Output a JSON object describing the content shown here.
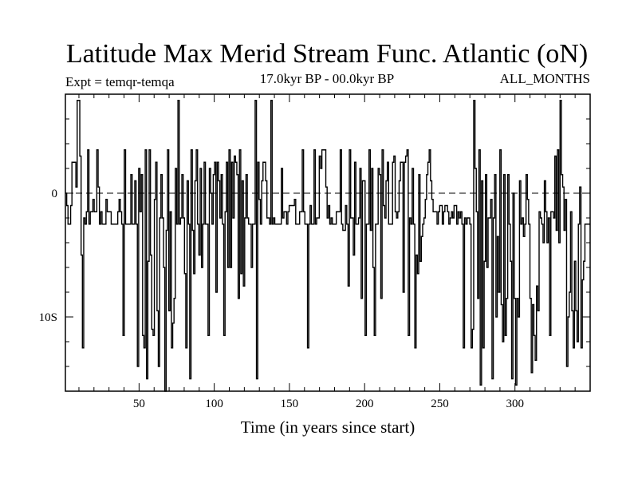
{
  "chart_data": {
    "type": "line",
    "title": "Latitude Max Merid Stream Func. Atlantic (oN)",
    "experiment_label": "Expt = temqr-temqa",
    "period_label": "17.0kyr BP - 00.0kyr BP",
    "months_label": "ALL_MONTHS",
    "xlabel": "Time (in years since start)",
    "ylabel": "",
    "xlim": [
      1,
      350
    ],
    "ylim": [
      -16,
      8
    ],
    "x_ticks": [
      {
        "value": 50,
        "label": "50"
      },
      {
        "value": 100,
        "label": "100"
      },
      {
        "value": 150,
        "label": "150"
      },
      {
        "value": 200,
        "label": "200"
      },
      {
        "value": 250,
        "label": "250"
      },
      {
        "value": 300,
        "label": "300"
      }
    ],
    "y_ticks": [
      {
        "value": 0,
        "label": "0"
      },
      {
        "value": -10,
        "label": "10S"
      }
    ],
    "zero_line": 0,
    "series": [
      {
        "name": "latitude",
        "values": [
          0,
          -1,
          -2.5,
          -2.5,
          -1,
          2.5,
          2.5,
          2.5,
          0.5,
          7.5,
          7.5,
          3,
          -5,
          -12.5,
          -2,
          -2.5,
          -1.5,
          3.5,
          -2.5,
          -1.5,
          -1.5,
          -0.5,
          -1.5,
          -1.5,
          3.5,
          0.5,
          -2.5,
          -1.5,
          -2.5,
          -2.5,
          -2.5,
          -0.5,
          -1.5,
          -1.5,
          -1.5,
          -2.5,
          -2.5,
          -2.5,
          -2.5,
          -2.5,
          -1.5,
          -0.5,
          -1.5,
          -2.5,
          -11.5,
          3.5,
          -2.5,
          -2.5,
          -2.5,
          -2.5,
          1.5,
          -2.5,
          -2.5,
          1,
          -2.5,
          -14,
          2,
          -1.5,
          1.5,
          -11.5,
          -12.5,
          3.5,
          -15,
          -5.5,
          3.5,
          -5,
          -11,
          -11.5,
          -0.5,
          2.5,
          -9.5,
          -14,
          -2,
          1.5,
          -2,
          -6,
          -16,
          -3,
          3.5,
          -9.5,
          -1.5,
          -12.5,
          -10.5,
          -8.5,
          2,
          -2.5,
          7.5,
          -2.5,
          -2,
          1.5,
          -2,
          -6.5,
          -12.5,
          1,
          -2.5,
          -15,
          3.5,
          -3,
          -6.5,
          1,
          3.5,
          -2.5,
          -5,
          2,
          -6,
          -2.5,
          2.5,
          -2.5,
          -2.5,
          -11.5,
          2,
          0,
          -2.5,
          1.5,
          2.5,
          -8,
          2.5,
          1,
          -2,
          1.5,
          -2.5,
          -11.5,
          -1.5,
          2.5,
          -6,
          3.5,
          -6,
          2.5,
          -2,
          3,
          2.5,
          1.5,
          -8.5,
          3.5,
          -6.5,
          1,
          -7.5,
          -2,
          1.5,
          -2,
          -2.5,
          -2.5,
          -6,
          -2.5,
          -2.5,
          7.5,
          -15,
          2.5,
          -0.5,
          -2.5,
          1,
          2.5,
          2.5,
          1,
          -2,
          -2,
          -2.5,
          7.5,
          -2.5,
          -2,
          -2.5,
          -2.5,
          -2.5,
          -2.5,
          -2.5,
          2,
          -2,
          -1.5,
          -1.5,
          -2.5,
          -1.5,
          -1,
          -1,
          -1,
          -1,
          -0.5,
          -2.5,
          -2.5,
          -2.5,
          -1.5,
          -1.5,
          3.5,
          -1.5,
          -2.5,
          -2.5,
          -12.5,
          -2.5,
          -1,
          -2.5,
          -2.5,
          3.5,
          -2.5,
          -2,
          -2,
          3,
          2,
          3.5,
          3.5,
          3.5,
          0.5,
          -2,
          -1,
          -2.5,
          -2,
          -2.5,
          -2.5,
          -2.5,
          -1.5,
          -1.5,
          -1.5,
          3.5,
          -2.5,
          -3,
          -3,
          -1,
          -2.5,
          -7.5,
          3.5,
          -2,
          -2,
          -5,
          2.5,
          -2.5,
          -2.5,
          -2,
          2,
          -8.5,
          1,
          1,
          -11.5,
          -2.5,
          -2.5,
          3.5,
          -3,
          2,
          -6,
          -11.5,
          -2.5,
          -2.5,
          2,
          1.5,
          -8.5,
          3.5,
          -1,
          -2,
          1,
          2.5,
          -2.5,
          -2.5,
          -2.5,
          2.5,
          3,
          -1.5,
          -2,
          -1.5,
          1,
          2.5,
          2.5,
          -8,
          2.5,
          3,
          3.5,
          -11.5,
          -2,
          -2.5,
          2,
          -2.5,
          -12.5,
          -5,
          -6.5,
          1.5,
          -5.5,
          -3.5,
          -2.5,
          -2,
          -0.5,
          1.5,
          2.5,
          3.5,
          1,
          -0.5,
          -1.5,
          -1.5,
          -1.5,
          -2.5,
          -1.5,
          -1,
          -1,
          -2.5,
          -1.5,
          -1,
          -1,
          -1.5,
          -2.5,
          -2,
          -1.5,
          -2,
          -1,
          -1,
          -2.5,
          -1.5,
          -2,
          -1.5,
          -2.5,
          -12.5,
          -2,
          -2.5,
          -2,
          -2,
          -2.5,
          -12.5,
          -11,
          7.5,
          2,
          -1.5,
          -8.5,
          3.5,
          -15.5,
          1,
          -12.5,
          -5.5,
          1.5,
          -6,
          -2,
          -2,
          -0.5,
          -15,
          -2,
          1.5,
          -10,
          -3.5,
          -8,
          3.5,
          -9,
          -12,
          1.5,
          -11.5,
          -8.5,
          1.5,
          -2.5,
          -5.5,
          -15,
          0,
          -8.5,
          -15.5,
          -8.5,
          -10,
          1,
          -2.5,
          -2,
          -3.5,
          -2.5,
          1.5,
          -0.5,
          -2.5,
          -8.5,
          -14.5,
          -9,
          -11.5,
          -13.5,
          -7.5,
          -9.5,
          -1.5,
          -2,
          -2.5,
          -4,
          1,
          -1.5,
          -4,
          -2,
          -11.5,
          -1.5,
          -1.5,
          -2,
          3,
          -3,
          3.5,
          -4,
          7.5,
          1.5,
          0.5,
          -3,
          -0.5,
          -14,
          -10,
          -8,
          -1.5,
          -9.5,
          -12.5,
          -5.5,
          -9.5,
          -12,
          -2.5,
          0.5,
          -12.5,
          -7,
          -5.5,
          -2.5,
          -2.5,
          -2.5,
          -2.5
        ]
      }
    ]
  }
}
